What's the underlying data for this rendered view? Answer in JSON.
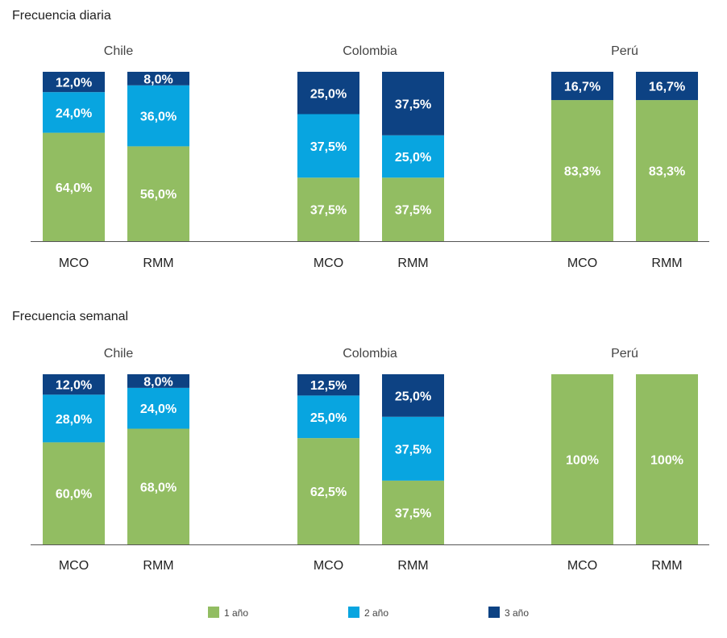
{
  "colors": {
    "1": "#92bd62",
    "2": "#08a5e0",
    "3": "#0d4283"
  },
  "chart_data": [
    {
      "type": "bar",
      "stacked": true,
      "title": "Frecuencia diaria",
      "groups": [
        {
          "name": "Chile",
          "bars": [
            {
              "category": "MCO",
              "values": [
                64.0,
                24.0,
                12.0
              ],
              "labels": [
                "64,0%",
                "24,0%",
                "12,0%"
              ]
            },
            {
              "category": "RMM",
              "values": [
                56.0,
                36.0,
                8.0
              ],
              "labels": [
                "56,0%",
                "36,0%",
                "8,0%"
              ]
            }
          ]
        },
        {
          "name": "Colombia",
          "bars": [
            {
              "category": "MCO",
              "values": [
                37.5,
                37.5,
                25.0
              ],
              "labels": [
                "37,5%",
                "37,5%",
                "25,0%"
              ]
            },
            {
              "category": "RMM",
              "values": [
                37.5,
                25.0,
                37.5
              ],
              "labels": [
                "37,5%",
                "25,0%",
                "37,5%"
              ]
            }
          ]
        },
        {
          "name": "Perú",
          "bars": [
            {
              "category": "MCO",
              "values": [
                83.3,
                0,
                16.7
              ],
              "labels": [
                "83,3%",
                "",
                "16,7%"
              ]
            },
            {
              "category": "RMM",
              "values": [
                83.3,
                0,
                16.7
              ],
              "labels": [
                "83,3%",
                "",
                "16,7%"
              ]
            }
          ]
        }
      ],
      "ylim": [
        0,
        100
      ]
    },
    {
      "type": "bar",
      "stacked": true,
      "title": "Frecuencia semanal",
      "groups": [
        {
          "name": "Chile",
          "bars": [
            {
              "category": "MCO",
              "values": [
                60.0,
                28.0,
                12.0
              ],
              "labels": [
                "60,0%",
                "28,0%",
                "12,0%"
              ]
            },
            {
              "category": "RMM",
              "values": [
                68.0,
                24.0,
                8.0
              ],
              "labels": [
                "68,0%",
                "24,0%",
                "8,0%"
              ]
            }
          ]
        },
        {
          "name": "Colombia",
          "bars": [
            {
              "category": "MCO",
              "values": [
                62.5,
                25.0,
                12.5
              ],
              "labels": [
                "62,5%",
                "25,0%",
                "12,5%"
              ]
            },
            {
              "category": "RMM",
              "values": [
                37.5,
                37.5,
                25.0
              ],
              "labels": [
                "37,5%",
                "37,5%",
                "25,0%"
              ]
            }
          ]
        },
        {
          "name": "Perú",
          "bars": [
            {
              "category": "MCO",
              "values": [
                100,
                0,
                0
              ],
              "labels": [
                "100%",
                "",
                ""
              ]
            },
            {
              "category": "RMM",
              "values": [
                100,
                0,
                0
              ],
              "labels": [
                "100%",
                "",
                ""
              ]
            }
          ]
        }
      ],
      "ylim": [
        0,
        100
      ]
    }
  ],
  "legend": [
    {
      "key": "1",
      "label": "1 año"
    },
    {
      "key": "2",
      "label": "2 año"
    },
    {
      "key": "3",
      "label": "3 año"
    }
  ]
}
